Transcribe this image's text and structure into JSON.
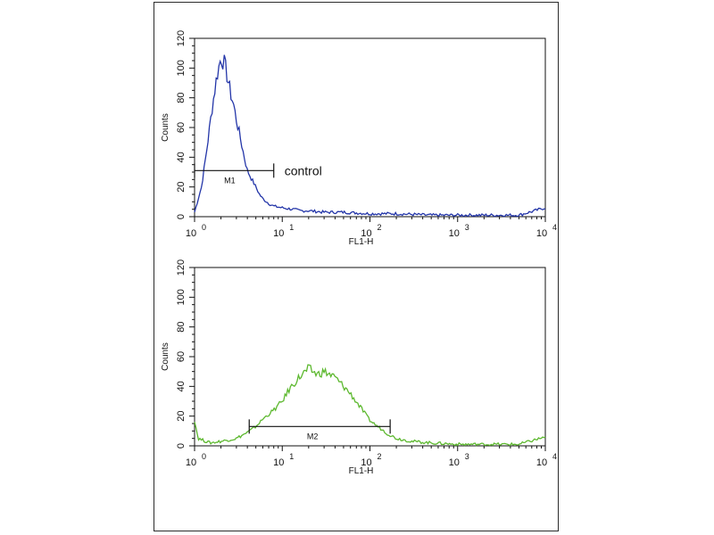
{
  "chart_data": [
    {
      "type": "line",
      "xlabel": "FL1-H",
      "ylabel": "Counts",
      "xscale": "log",
      "xlim": [
        1,
        10000
      ],
      "ylim": [
        0,
        120
      ],
      "xticks": [
        "10",
        "10",
        "10",
        "10",
        "10"
      ],
      "xtick_exponents": [
        "0",
        "1",
        "2",
        "3",
        "4"
      ],
      "xtick_values": [
        1,
        10,
        100,
        1000,
        10000
      ],
      "yticks": [
        "0",
        "20",
        "40",
        "60",
        "80",
        "100",
        "120"
      ],
      "ytick_values": [
        0,
        20,
        40,
        60,
        80,
        100,
        120
      ],
      "color": "#2335a8",
      "annotation": "control",
      "marker": {
        "label": "M1",
        "range": [
          1,
          8
        ],
        "y": 31
      },
      "series": [
        {
          "x": [
            1.0,
            1.2,
            1.4,
            1.6,
            1.8,
            2.0,
            2.2,
            2.4,
            2.6,
            2.8,
            3.0,
            3.3,
            3.6,
            4.0,
            4.5,
            5.0,
            5.5,
            6.0,
            7.0,
            8.0,
            10,
            13,
            16,
            20,
            30,
            50,
            100,
            200,
            500,
            1000,
            2000,
            5000,
            10000
          ],
          "y": [
            3,
            20,
            48,
            75,
            95,
            107,
            103,
            92,
            82,
            75,
            65,
            54,
            43,
            31,
            25,
            20,
            15,
            12,
            9,
            7,
            6,
            5,
            4,
            4,
            3,
            3,
            2,
            2,
            1,
            1,
            1,
            1,
            6
          ]
        }
      ]
    },
    {
      "type": "line",
      "xlabel": "FL1-H",
      "ylabel": "Counts",
      "xscale": "log",
      "xlim": [
        1,
        10000
      ],
      "ylim": [
        0,
        120
      ],
      "xticks": [
        "10",
        "10",
        "10",
        "10",
        "10"
      ],
      "xtick_exponents": [
        "0",
        "1",
        "2",
        "3",
        "4"
      ],
      "xtick_values": [
        1,
        10,
        100,
        1000,
        10000
      ],
      "yticks": [
        "0",
        "20",
        "40",
        "60",
        "80",
        "100",
        "120"
      ],
      "ytick_values": [
        0,
        20,
        40,
        60,
        80,
        100,
        120
      ],
      "color": "#5cb82e",
      "marker": {
        "label": "M2",
        "range": [
          4.2,
          170
        ],
        "y": 13
      },
      "series": [
        {
          "x": [
            1.0,
            1.1,
            1.5,
            2.0,
            3.0,
            4.0,
            5.0,
            6.0,
            8.0,
            10,
            12,
            15,
            20,
            25,
            30,
            40,
            50,
            60,
            80,
            100,
            130,
            160,
            200,
            300,
            500,
            1000,
            2000,
            5000,
            10000
          ],
          "y": [
            17,
            5,
            2,
            3,
            5,
            9,
            13,
            18,
            24,
            30,
            38,
            45,
            52,
            48,
            50,
            46,
            40,
            35,
            25,
            17,
            12,
            8,
            5,
            3,
            2,
            1,
            1,
            1,
            6
          ]
        }
      ]
    }
  ]
}
